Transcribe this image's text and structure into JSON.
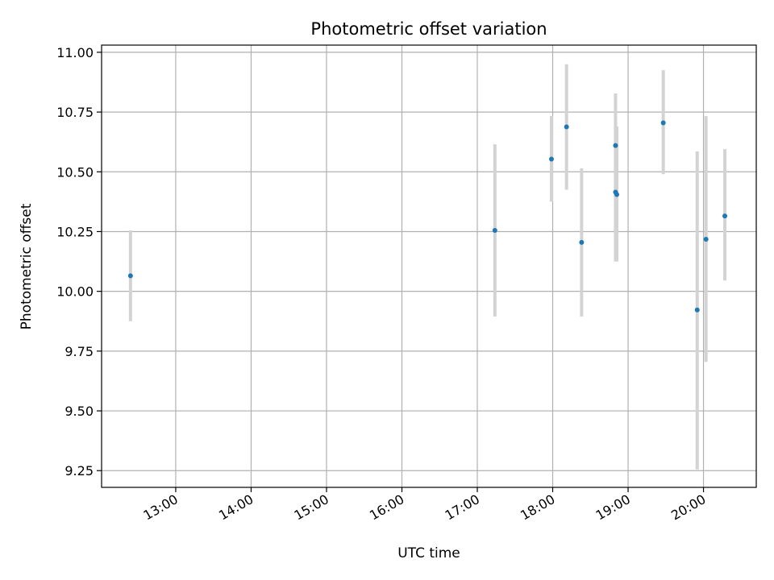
{
  "chart_data": {
    "type": "scatter",
    "title": "Photometric offset variation",
    "xlabel": "UTC time",
    "ylabel": "Photometric offset",
    "x_ticks": [
      "13:00",
      "14:00",
      "15:00",
      "16:00",
      "17:00",
      "18:00",
      "19:00",
      "20:00"
    ],
    "y_ticks": [
      "9.25",
      "9.50",
      "9.75",
      "10.00",
      "10.25",
      "10.50",
      "10.75",
      "11.00"
    ],
    "xlim": [
      "12:01",
      "20:42"
    ],
    "ylim": [
      9.18,
      11.03
    ],
    "grid": true,
    "colors": {
      "point": "#1f77b4",
      "errorbar": "#d3d3d3",
      "grid": "#b0b0b0",
      "axis": "#000000"
    },
    "points": [
      {
        "x": "12:24",
        "y": 10.065,
        "err_low": 9.875,
        "err_high": 10.255
      },
      {
        "x": "17:14",
        "y": 10.255,
        "err_low": 9.895,
        "err_high": 10.615
      },
      {
        "x": "17:59",
        "y": 10.553,
        "err_low": 10.375,
        "err_high": 10.733
      },
      {
        "x": "18:11",
        "y": 10.688,
        "err_low": 10.425,
        "err_high": 10.95
      },
      {
        "x": "18:23",
        "y": 10.205,
        "err_low": 9.895,
        "err_high": 10.515
      },
      {
        "x": "18:50",
        "y": 10.61,
        "err_low": 10.395,
        "err_high": 10.828
      },
      {
        "x": "18:50",
        "y": 10.415,
        "err_low": 10.125,
        "err_high": 10.695
      },
      {
        "x": "18:51",
        "y": 10.405,
        "err_low": 10.125,
        "err_high": 10.69
      },
      {
        "x": "19:28",
        "y": 10.705,
        "err_low": 10.49,
        "err_high": 10.925
      },
      {
        "x": "19:55",
        "y": 9.922,
        "err_low": 9.255,
        "err_high": 10.585
      },
      {
        "x": "20:02",
        "y": 10.218,
        "err_low": 9.705,
        "err_high": 10.733
      },
      {
        "x": "20:17",
        "y": 10.315,
        "err_low": 10.045,
        "err_high": 10.595
      }
    ]
  }
}
